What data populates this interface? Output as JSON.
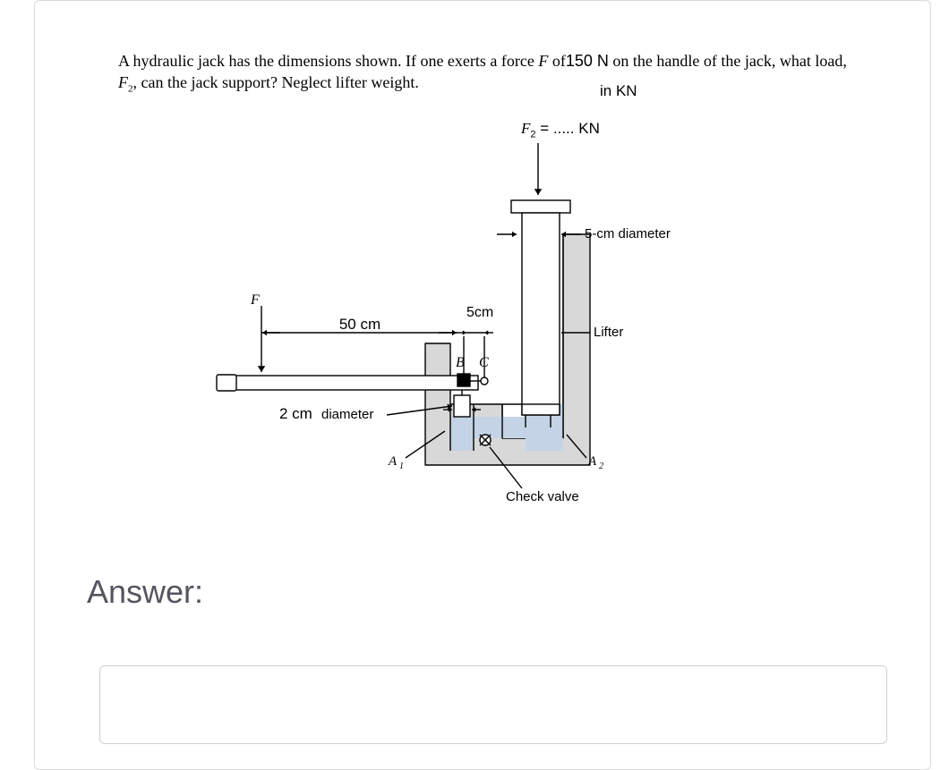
{
  "problem": {
    "text_before_force": "A hydraulic jack has the dimensions shown. If one exerts a force ",
    "F_italic": "F",
    "of_text": " of",
    "force_value": "150 N",
    "text_after_force": " on the handle of the jack, what load, ",
    "F2_italic": "F",
    "F2_sub": "2",
    "text_end": ", can the jack support? Neglect lifter weight.",
    "in_kn": "in KN",
    "f2_equals": "  = ..... KN"
  },
  "diagram": {
    "label_F": "F",
    "dim_50cm": "50 cm",
    "dim_5cm": "5cm",
    "label_B": "B",
    "label_C": "C",
    "dim_2cm": "2 cm",
    "label_diameter": "diameter",
    "label_A1": "A",
    "label_A1_sub": "1",
    "label_A2": "A",
    "label_A2_sub": "2",
    "label_check_valve": "Check valve",
    "label_5cm_diameter": "5-cm diameter",
    "label_lifter": "Lifter",
    "F2_top": "F",
    "F2_top_sub": "2",
    "colors": {
      "body_fill": "#d8d8d9",
      "fluid_fill": "#c5d3e6",
      "stroke": "#000000",
      "background": "#ffffff"
    },
    "stroke_width": 1.4,
    "font_size_label": 15,
    "font_size_small": 13
  },
  "answer": {
    "label": "Answer:",
    "value": ""
  }
}
